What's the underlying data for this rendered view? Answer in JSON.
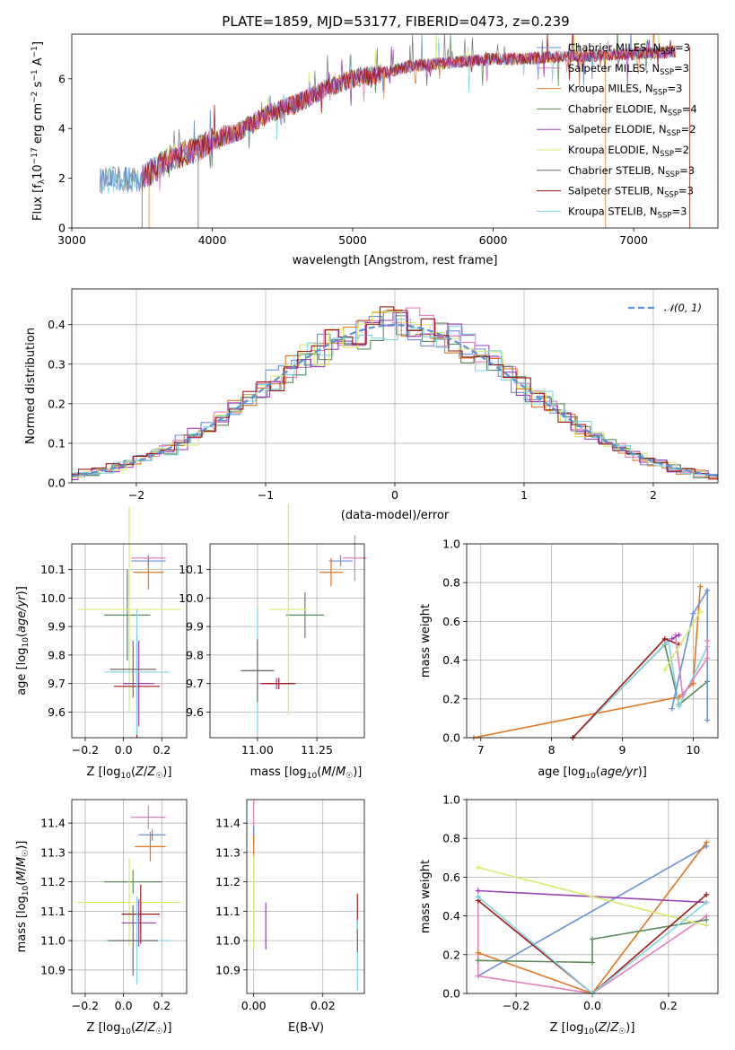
{
  "figure_title": "PLATE=1859, MJD=53177, FIBERID=0473, z=0.239",
  "colors": [
    "#6a8fd6",
    "#e37fbf",
    "#e0761f",
    "#5a8a5a",
    "#9b3fb5",
    "#d9ea6a",
    "#6b6b6b",
    "#a01818",
    "#7fd4e0"
  ],
  "chart_data": [
    {
      "id": "spectrum",
      "type": "line",
      "title": "PLATE=1859, MJD=53177, FIBERID=0473, z=0.239",
      "xlabel": "wavelength [Angstrom, rest frame]",
      "ylabel": "Flux [f_λ 10^-17 erg cm^-2 s^-1 A^-1]",
      "xlim": [
        3000,
        7600
      ],
      "ylim": [
        0,
        7.8
      ],
      "xticks": [
        3000,
        4000,
        5000,
        6000,
        7000
      ],
      "yticks": [
        0,
        2,
        4,
        6
      ],
      "continuum": {
        "x": [
          3200,
          3500,
          3700,
          3900,
          4000,
          4200,
          4400,
          4600,
          4800,
          5000,
          5200,
          5400,
          5600,
          5800,
          6000,
          6200,
          6500,
          7000,
          7300
        ],
        "y": [
          1.9,
          2.0,
          2.8,
          3.2,
          3.5,
          3.9,
          4.6,
          5.0,
          5.6,
          6.0,
          6.2,
          6.5,
          6.6,
          6.7,
          6.8,
          6.8,
          6.9,
          7.0,
          7.1
        ]
      },
      "legend_location": "upper right",
      "legend": [
        {
          "label": "Chabrier MILES, N_SSP=3",
          "text": "Chabrier MILES, N",
          "sub": "SSP",
          "tail": "=3"
        },
        {
          "label": "Salpeter MILES, N_SSP=3",
          "text": "Salpeter MILES, N",
          "sub": "SSP",
          "tail": "=3"
        },
        {
          "label": "Kroupa MILES, N_SSP=3",
          "text": "Kroupa MILES, N",
          "sub": "SSP",
          "tail": "=3"
        },
        {
          "label": "Chabrier ELODIE, N_SSP=4",
          "text": "Chabrier ELODIE, N",
          "sub": "SSP",
          "tail": "=4"
        },
        {
          "label": "Salpeter ELODIE, N_SSP=2",
          "text": "Salpeter ELODIE, N",
          "sub": "SSP",
          "tail": "=2"
        },
        {
          "label": "Kroupa ELODIE, N_SSP=2",
          "text": "Kroupa ELODIE, N",
          "sub": "SSP",
          "tail": "=2"
        },
        {
          "label": "Chabrier STELIB, N_SSP=3",
          "text": "Chabrier STELIB, N",
          "sub": "SSP",
          "tail": "=3"
        },
        {
          "label": "Salpeter STELIB, N_SSP=3",
          "text": "Salpeter STELIB, N",
          "sub": "SSP",
          "tail": "=3"
        },
        {
          "label": "Kroupa STELIB, N_SSP=3",
          "text": "Kroupa STELIB, N",
          "sub": "SSP",
          "tail": "=3"
        }
      ]
    },
    {
      "id": "residuals",
      "type": "line",
      "xlabel": "(data-model)/error",
      "ylabel": "Normed distribution",
      "xlim": [
        -2.5,
        2.5
      ],
      "ylim": [
        0,
        0.49
      ],
      "xticks": [
        -2,
        -1,
        0,
        1,
        2
      ],
      "yticks": [
        0,
        0.1,
        0.2,
        0.3,
        0.4
      ],
      "xtick_labels": [
        "−2",
        "−1",
        "0",
        "1",
        "2"
      ],
      "normal_label": "N(0,1)",
      "normal_label_display": "𝒩(0, 1)",
      "normal_mean": 0,
      "normal_sigma": 1,
      "legend_location": "upper right"
    },
    {
      "id": "age_vs_Z",
      "type": "scatter",
      "xlabel": "Z [log10(Z/Z☉)]",
      "ylabel": "age [log10(age/yr)]",
      "xlim": [
        -0.27,
        0.33
      ],
      "ylim": [
        9.51,
        10.19
      ],
      "xticks": [
        -0.2,
        0.0,
        0.2
      ],
      "yticks": [
        9.6,
        9.7,
        9.8,
        9.9,
        10.0,
        10.1
      ],
      "xtick_labels": [
        "−0.2",
        "0.0",
        "0.2"
      ],
      "points": [
        {
          "c": 0,
          "x": 0.13,
          "xe": 0.09,
          "y": 10.13,
          "ye": 0.02
        },
        {
          "c": 1,
          "x": 0.13,
          "xe": 0.09,
          "y": 10.14,
          "ye": 0.01
        },
        {
          "c": 2,
          "x": 0.13,
          "xe": 0.08,
          "y": 10.09,
          "ye": 0.06
        },
        {
          "c": 3,
          "x": 0.02,
          "xe": 0.12,
          "y": 9.94,
          "ye": 0.16
        },
        {
          "c": 5,
          "x": 0.03,
          "xe": 0.27,
          "y": 9.96,
          "ye": 0.36
        },
        {
          "c": 4,
          "x": 0.08,
          "xe": 0.08,
          "y": 9.7,
          "ye": 0.15
        },
        {
          "c": 7,
          "x": 0.07,
          "xe": 0.12,
          "y": 9.69,
          "ye": 0.18
        },
        {
          "c": 8,
          "x": 0.07,
          "xe": 0.17,
          "y": 9.74,
          "ye": 0.22
        },
        {
          "c": 6,
          "x": 0.05,
          "xe": 0.12,
          "y": 9.75,
          "ye": 0.1
        }
      ]
    },
    {
      "id": "age_vs_mass",
      "type": "scatter",
      "xlabel": "mass [log10(M/M☉)]",
      "ylabel": "",
      "xlim": [
        10.8,
        11.45
      ],
      "ylim": [
        9.51,
        10.19
      ],
      "xticks": [
        11.0,
        11.25
      ],
      "yticks": [
        9.6,
        9.7,
        9.8,
        9.9,
        10.0,
        10.1
      ],
      "points": [
        {
          "c": 0,
          "x": 11.35,
          "xe": 0.05,
          "y": 10.13,
          "ye": 0.02
        },
        {
          "c": 1,
          "x": 11.41,
          "xe": 0.05,
          "y": 10.14,
          "ye": 0.08
        },
        {
          "c": 2,
          "x": 11.31,
          "xe": 0.05,
          "y": 10.09,
          "ye": 0.05
        },
        {
          "c": 3,
          "x": 11.2,
          "xe": 0.08,
          "y": 9.94,
          "ye": 0.08
        },
        {
          "c": 5,
          "x": 11.13,
          "xe": 0.08,
          "y": 9.96,
          "ye": 0.37
        },
        {
          "c": 4,
          "x": 11.08,
          "xe": 0.07,
          "y": 9.7,
          "ye": 0.02
        },
        {
          "c": 7,
          "x": 11.09,
          "xe": 0.07,
          "y": 9.7,
          "ye": 0.02
        },
        {
          "c": 8,
          "x": 11.0,
          "xe": 0.07,
          "y": 9.745,
          "ye": 0.22
        },
        {
          "c": 6,
          "x": 11.0,
          "xe": 0.07,
          "y": 9.745,
          "ye": 0.11
        }
      ]
    },
    {
      "id": "mass_weight_vs_age",
      "type": "line",
      "xlabel": "age [log10(age/yr)]",
      "ylabel": "mass weight",
      "xlim": [
        6.8,
        10.35
      ],
      "ylim": [
        0,
        1.0
      ],
      "xticks": [
        7,
        8,
        9,
        10
      ],
      "yticks": [
        0.0,
        0.2,
        0.4,
        0.6,
        0.8,
        1.0
      ],
      "series": [
        {
          "c": 2,
          "x": [
            6.9,
            9.8,
            10.0,
            10.1
          ],
          "y": [
            0.0,
            0.21,
            0.28,
            0.78
          ]
        },
        {
          "c": 3,
          "x": [
            8.3,
            9.6,
            9.8,
            10.2
          ],
          "y": [
            0.0,
            0.48,
            0.17,
            0.29
          ]
        },
        {
          "c": 8,
          "x": [
            8.3,
            9.65,
            9.8,
            10.2
          ],
          "y": [
            0.0,
            0.5,
            0.16,
            0.47
          ]
        },
        {
          "c": 7,
          "x": [
            8.3,
            9.6,
            9.8
          ],
          "y": [
            0.0,
            0.51,
            0.48
          ]
        },
        {
          "c": 0,
          "x": [
            9.7,
            10.0,
            10.2,
            10.2
          ],
          "y": [
            0.15,
            0.64,
            0.76,
            0.09
          ]
        },
        {
          "c": 1,
          "x": [
            9.75,
            9.85,
            10.2,
            10.2
          ],
          "y": [
            0.53,
            0.22,
            0.41,
            0.5
          ]
        },
        {
          "c": 4,
          "x": [
            9.7,
            9.8
          ],
          "y": [
            0.51,
            0.53
          ]
        },
        {
          "c": 5,
          "x": [
            9.6,
            10.1
          ],
          "y": [
            0.35,
            0.65
          ]
        }
      ]
    },
    {
      "id": "mass_vs_Z",
      "type": "scatter",
      "xlabel": "Z [log10(Z/Z☉)]",
      "ylabel": "mass [log10(M/M☉)]",
      "xlim": [
        -0.27,
        0.33
      ],
      "ylim": [
        10.82,
        11.48
      ],
      "xticks": [
        -0.2,
        0.0,
        0.2
      ],
      "yticks": [
        10.9,
        11.0,
        11.1,
        11.2,
        11.3,
        11.4
      ],
      "xtick_labels": [
        "−0.2",
        "0.0",
        "0.2"
      ],
      "points": [
        {
          "c": 0,
          "x": 0.15,
          "xe": 0.07,
          "y": 11.36,
          "ye": 0.02
        },
        {
          "c": 1,
          "x": 0.13,
          "xe": 0.09,
          "y": 11.42,
          "ye": 0.04
        },
        {
          "c": 2,
          "x": 0.14,
          "xe": 0.08,
          "y": 11.32,
          "ye": 0.05
        },
        {
          "c": 3,
          "x": 0.05,
          "xe": 0.15,
          "y": 11.2,
          "ye": 0.04
        },
        {
          "c": 5,
          "x": 0.03,
          "xe": 0.27,
          "y": 11.13,
          "ye": 0.15
        },
        {
          "c": 4,
          "x": 0.08,
          "xe": 0.09,
          "y": 11.06,
          "ye": 0.08
        },
        {
          "c": 7,
          "x": 0.09,
          "xe": 0.1,
          "y": 11.09,
          "ye": 0.1
        },
        {
          "c": 8,
          "x": 0.07,
          "xe": 0.17,
          "y": 11.0,
          "ye": 0.15
        },
        {
          "c": 6,
          "x": 0.05,
          "xe": 0.13,
          "y": 11.0,
          "ye": 0.12
        }
      ]
    },
    {
      "id": "mass_vs_EBV",
      "type": "scatter",
      "xlabel": "E(B-V)",
      "ylabel": "",
      "xlim": [
        -0.002,
        0.032
      ],
      "ylim": [
        10.82,
        11.48
      ],
      "xticks": [
        0.0,
        0.02
      ],
      "yticks": [
        10.9,
        11.0,
        11.1,
        11.2,
        11.3,
        11.4
      ],
      "points": [
        {
          "c": 1,
          "x": 0.0,
          "xe": 0,
          "y": 11.42,
          "ye": 0.06
        },
        {
          "c": 0,
          "x": 0.0,
          "xe": 0,
          "y": 11.36,
          "ye": 0.03
        },
        {
          "c": 2,
          "x": 0.0,
          "xe": 0,
          "y": 11.32,
          "ye": 0.04
        },
        {
          "c": 5,
          "x": 0.0,
          "xe": 0,
          "y": 11.13,
          "ye": 0.16
        },
        {
          "c": 4,
          "x": 0.0035,
          "xe": 0,
          "y": 11.05,
          "ye": 0.08
        },
        {
          "c": 7,
          "x": 0.03,
          "xe": 0,
          "y": 11.1,
          "ye": 0.06
        },
        {
          "c": 8,
          "x": 0.03,
          "xe": 0,
          "y": 10.95,
          "ye": 0.12
        },
        {
          "c": 6,
          "x": 0.03,
          "xe": 0,
          "y": 11.0,
          "ye": 0.04
        }
      ]
    },
    {
      "id": "mass_weight_vs_Z",
      "type": "line",
      "xlabel": "Z [log10(Z/Z☉)]",
      "ylabel": "mass weight",
      "xlim": [
        -0.33,
        0.33
      ],
      "ylim": [
        0,
        1.0
      ],
      "xticks": [
        -0.2,
        0.0,
        0.2
      ],
      "yticks": [
        0.0,
        0.2,
        0.4,
        0.6,
        0.8,
        1.0
      ],
      "xtick_labels": [
        "−0.2",
        "0.0",
        "0.2"
      ],
      "series": [
        {
          "c": 0,
          "x": [
            -0.3,
            0.3
          ],
          "y": [
            0.09,
            0.76
          ]
        },
        {
          "c": 1,
          "x": [
            -0.3,
            -0.3,
            0.0,
            0.3
          ],
          "y": [
            0.5,
            0.09,
            0.0,
            0.4
          ]
        },
        {
          "c": 2,
          "x": [
            -0.3,
            0.0,
            0.3
          ],
          "y": [
            0.21,
            0.0,
            0.78
          ]
        },
        {
          "c": 3,
          "x": [
            -0.3,
            0.0,
            0.0,
            0.3
          ],
          "y": [
            0.17,
            0.16,
            0.28,
            0.38
          ]
        },
        {
          "c": 4,
          "x": [
            -0.3,
            0.3
          ],
          "y": [
            0.53,
            0.47
          ]
        },
        {
          "c": 5,
          "x": [
            -0.3,
            0.3
          ],
          "y": [
            0.65,
            0.35
          ]
        },
        {
          "c": 7,
          "x": [
            -0.3,
            0.0,
            0.3
          ],
          "y": [
            0.48,
            0.0,
            0.51
          ]
        },
        {
          "c": 8,
          "x": [
            -0.3,
            0.0,
            0.3
          ],
          "y": [
            0.5,
            0.0,
            0.47
          ]
        }
      ]
    }
  ]
}
